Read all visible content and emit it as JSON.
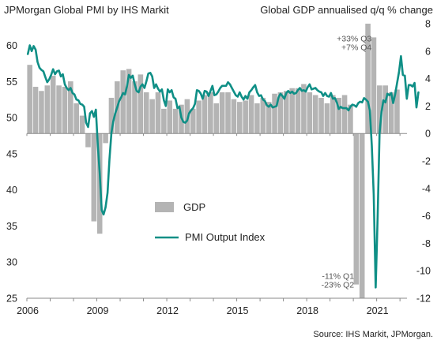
{
  "chart_data": {
    "type": "bar+line",
    "title_left": "JPMorgan  Global PMI by IHS Markit",
    "title_right": "Global GDP annualised q/q % change",
    "source": "Source: IHS Markit, JPMorgan.",
    "x_ticks": [
      "2006",
      "2009",
      "2012",
      "2015",
      "2018",
      "2021"
    ],
    "x_range": [
      2006,
      2022.3
    ],
    "y_left": {
      "min": 25,
      "max": 63,
      "ticks": [
        25,
        30,
        35,
        40,
        45,
        50,
        55,
        60
      ]
    },
    "y_right": {
      "min": -12,
      "max": 8,
      "ticks": [
        -12,
        -10,
        -8,
        -6,
        -4,
        -2,
        0,
        2,
        4,
        6,
        8
      ]
    },
    "legend": {
      "gdp": "GDP",
      "pmi": "PMI Output Index",
      "placement": "center"
    },
    "colors": {
      "gdp": "#b4b4b4",
      "pmi": "#0f8f86"
    },
    "annotations": [
      {
        "lines": [
          "+33% Q3",
          "+7% Q4"
        ],
        "anchor_x": 2020.85,
        "anchor_y_right": 6.7
      },
      {
        "lines": [
          "-11% Q1",
          "-23% Q2"
        ],
        "anchor_x": 2020.1,
        "anchor_y_right": -10.6
      }
    ],
    "gdp_series": {
      "name": "GDP",
      "axis": "right",
      "quarters": [
        "2006Q1",
        "2006Q2",
        "2006Q3",
        "2006Q4",
        "2007Q1",
        "2007Q2",
        "2007Q3",
        "2007Q4",
        "2008Q1",
        "2008Q2",
        "2008Q3",
        "2008Q4",
        "2009Q1",
        "2009Q2",
        "2009Q3",
        "2009Q4",
        "2010Q1",
        "2010Q2",
        "2010Q3",
        "2010Q4",
        "2011Q1",
        "2011Q2",
        "2011Q3",
        "2011Q4",
        "2012Q1",
        "2012Q2",
        "2012Q3",
        "2012Q4",
        "2013Q1",
        "2013Q2",
        "2013Q3",
        "2013Q4",
        "2014Q1",
        "2014Q2",
        "2014Q3",
        "2014Q4",
        "2015Q1",
        "2015Q2",
        "2015Q3",
        "2015Q4",
        "2016Q1",
        "2016Q2",
        "2016Q3",
        "2016Q4",
        "2017Q1",
        "2017Q2",
        "2017Q3",
        "2017Q4",
        "2018Q1",
        "2018Q2",
        "2018Q3",
        "2018Q4",
        "2019Q1",
        "2019Q2",
        "2019Q3",
        "2019Q4",
        "2020Q1",
        "2020Q2",
        "2020Q3",
        "2020Q4",
        "2021Q1",
        "2021Q2",
        "2021Q3",
        "2021Q4"
      ],
      "values": [
        5.0,
        3.4,
        3.1,
        3.5,
        4.2,
        3.5,
        3.4,
        3.8,
        2.2,
        1.3,
        -1.0,
        -6.4,
        -7.3,
        -0.7,
        2.6,
        3.8,
        4.6,
        4.7,
        3.8,
        4.3,
        3.0,
        2.5,
        3.0,
        1.8,
        2.4,
        1.8,
        2.1,
        2.5,
        1.8,
        2.4,
        2.8,
        3.0,
        2.2,
        3.0,
        3.0,
        2.5,
        2.3,
        2.4,
        2.8,
        2.2,
        2.6,
        2.3,
        2.9,
        3.0,
        3.1,
        3.3,
        3.3,
        3.6,
        3.0,
        2.8,
        2.6,
        2.2,
        2.8,
        2.6,
        2.8,
        2.1,
        -11.0,
        -23.0,
        33.0,
        7.0,
        3.5,
        3.5,
        3.0,
        3.2
      ]
    },
    "pmi_series": {
      "name": "PMI Output Index",
      "axis": "left",
      "start": "2006-01",
      "values": [
        58.8,
        60.0,
        59.2,
        59.9,
        59.4,
        57.7,
        56.9,
        56.6,
        56.4,
        55.6,
        54.9,
        55.3,
        55.9,
        56.7,
        56.0,
        56.4,
        56.5,
        55.7,
        56.0,
        54.6,
        54.1,
        53.8,
        54.1,
        53.4,
        53.2,
        52.5,
        52.4,
        51.9,
        51.8,
        51.5,
        49.3,
        48.7,
        50.6,
        50.9,
        50.1,
        51.1,
        46.1,
        42.3,
        37.2,
        36.6,
        37.6,
        39.6,
        44.2,
        47.9,
        49.5,
        50.6,
        51.4,
        52.3,
        52.8,
        53.4,
        53.2,
        54.3,
        55.9,
        55.5,
        55.8,
        54.6,
        53.7,
        53.5,
        54.3,
        54.6,
        54.1,
        55.0,
        56.1,
        56.2,
        55.7,
        54.1,
        54.6,
        54.0,
        53.6,
        53.9,
        52.4,
        51.6,
        53.9,
        53.5,
        53.8,
        52.8,
        52.6,
        51.3,
        51.5,
        50.0,
        49.4,
        49.3,
        49.6,
        50.6,
        51.0,
        51.3,
        51.9,
        53.8,
        53.7,
        53.3,
        52.6,
        53.7,
        53.6,
        53.0,
        53.7,
        54.4,
        53.1,
        53.2,
        53.6,
        54.1,
        54.4,
        54.4,
        54.4,
        54.9,
        54.6,
        54.1,
        53.6,
        53.1,
        52.9,
        53.5,
        52.9,
        52.5,
        53.0,
        52.6,
        53.5,
        53.8,
        54.2,
        54.5,
        53.5,
        53.0,
        53.1,
        52.5,
        52.3,
        51.7,
        51.5,
        51.8,
        51.4,
        51.5,
        51.6,
        52.8,
        53.3,
        53.0,
        52.6,
        53.4,
        53.7,
        53.4,
        53.6,
        53.3,
        53.4,
        53.8,
        54.1,
        53.7,
        53.8,
        53.6,
        54.2,
        54.6,
        53.9,
        54.0,
        54.1,
        53.8,
        53.6,
        53.5,
        53.0,
        53.4,
        53.0,
        52.9,
        53.4,
        52.6,
        52.7,
        52.1,
        51.2,
        51.5,
        51.3,
        51.3,
        51.3,
        51.0,
        51.5,
        51.8,
        51.7,
        51.5,
        52.0,
        52.2,
        52.1,
        52.7,
        52.5,
        52.2,
        51.0,
        46.1,
        39.4,
        26.5,
        36.3,
        47.8,
        50.8,
        52.4,
        52.1,
        53.3,
        53.1,
        53.4,
        52.0,
        53.2,
        54.8,
        56.3,
        58.5,
        55.9,
        55.8,
        52.6,
        54.5,
        54.5,
        54.3,
        54.8,
        51.4,
        53.5
      ]
    }
  }
}
